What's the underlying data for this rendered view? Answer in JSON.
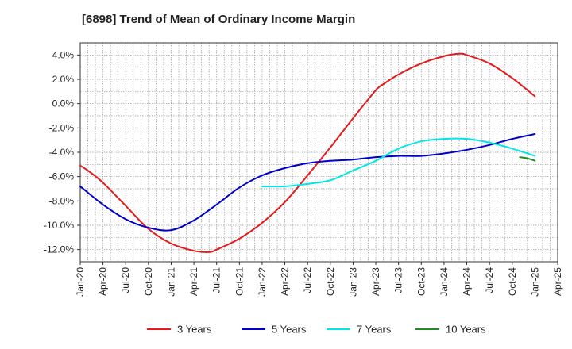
{
  "chart_data": {
    "type": "line",
    "title": "[6898]  Trend of Mean of Ordinary Income Margin",
    "xlabel": "",
    "ylabel": "",
    "ylim": [
      -13.0,
      5.0
    ],
    "y_ticks": [
      4.0,
      2.0,
      0.0,
      -2.0,
      -4.0,
      -6.0,
      -8.0,
      -10.0,
      -12.0
    ],
    "y_tick_labels": [
      "4.0%",
      "2.0%",
      "0.0%",
      "-2.0%",
      "-4.0%",
      "-6.0%",
      "-8.0%",
      "-10.0%",
      "-12.0%"
    ],
    "x_tick_labels": [
      "Jan-20",
      "Apr-20",
      "Jul-20",
      "Oct-20",
      "Jan-21",
      "Apr-21",
      "Jul-21",
      "Oct-21",
      "Jan-22",
      "Apr-22",
      "Jul-22",
      "Oct-22",
      "Jan-23",
      "Apr-23",
      "Jul-23",
      "Oct-23",
      "Jan-24",
      "Apr-24",
      "Jul-24",
      "Oct-24",
      "Jan-25",
      "Apr-25"
    ],
    "grid": true,
    "legend_position": "bottom",
    "series": [
      {
        "name": "3 Years",
        "color": "#e41a1c",
        "x": [
          "Jan-20",
          "Feb-20",
          "Apr-20",
          "Jul-20",
          "Oct-20",
          "Jan-21",
          "Apr-21",
          "Jun-21",
          "Jul-21",
          "Oct-21",
          "Jan-22",
          "Apr-22",
          "Jul-22",
          "Oct-22",
          "Jan-23",
          "Apr-23",
          "May-23",
          "Jul-23",
          "Oct-23",
          "Jan-24",
          "Mar-24",
          "Apr-24",
          "Jul-24",
          "Oct-24",
          "Jan-25"
        ],
        "y": [
          -5.1,
          -5.5,
          -6.5,
          -8.4,
          -10.3,
          -11.5,
          -12.1,
          -12.2,
          -12.0,
          -11.1,
          -9.8,
          -8.1,
          -5.9,
          -3.6,
          -1.2,
          1.1,
          1.6,
          2.4,
          3.3,
          3.9,
          4.1,
          4.0,
          3.3,
          2.1,
          0.6
        ]
      },
      {
        "name": "5 Years",
        "color": "#0000cc",
        "x": [
          "Jan-20",
          "Apr-20",
          "Jul-20",
          "Oct-20",
          "Jan-21",
          "Apr-21",
          "Jul-21",
          "Oct-21",
          "Jan-22",
          "Apr-22",
          "Jul-22",
          "Oct-22",
          "Jan-23",
          "Apr-23",
          "Jul-23",
          "Oct-23",
          "Jan-24",
          "Apr-24",
          "Jul-24",
          "Oct-24",
          "Jan-25"
        ],
        "y": [
          -6.8,
          -8.3,
          -9.5,
          -10.2,
          -10.4,
          -9.6,
          -8.3,
          -6.9,
          -5.9,
          -5.3,
          -4.9,
          -4.7,
          -4.6,
          -4.4,
          -4.3,
          -4.3,
          -4.1,
          -3.8,
          -3.4,
          -2.9,
          -2.5
        ]
      },
      {
        "name": "7 Years",
        "color": "#00e5e5",
        "x": [
          "Jan-22",
          "Apr-22",
          "Jul-22",
          "Oct-22",
          "Jan-23",
          "Apr-23",
          "Jul-23",
          "Oct-23",
          "Jan-24",
          "Apr-24",
          "Jul-24",
          "Oct-24",
          "Jan-25"
        ],
        "y": [
          -6.8,
          -6.8,
          -6.6,
          -6.3,
          -5.5,
          -4.7,
          -3.7,
          -3.1,
          -2.9,
          -2.9,
          -3.2,
          -3.7,
          -4.3
        ]
      },
      {
        "name": "10 Years",
        "color": "#228b22",
        "x": [
          "Nov-24",
          "Dec-24",
          "Jan-25"
        ],
        "y": [
          -4.4,
          -4.5,
          -4.7
        ]
      }
    ]
  }
}
